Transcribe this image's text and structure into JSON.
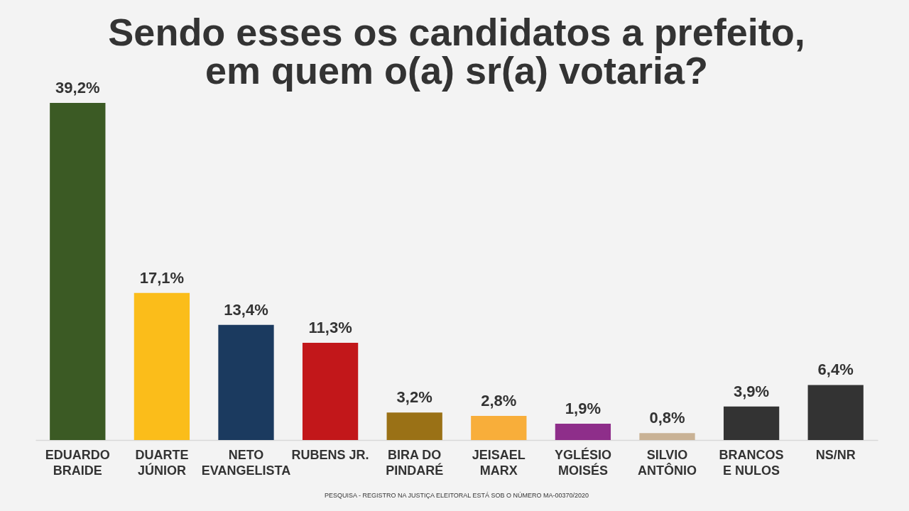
{
  "chart_data": {
    "type": "bar",
    "title": "Sendo esses os candidatos a prefeito,\nem quem o(a) sr(a) votaria?",
    "categories": [
      "EDUARDO\nBRAIDE",
      "DUARTE\nJÚNIOR",
      "NETO\nEVANGELISTA",
      "RUBENS JR.",
      "BIRA DO\nPINDARÉ",
      "JEISAEL\nMARX",
      "YGLÉSIO\nMOISÉS",
      "SILVIO\nANTÔNIO",
      "BRANCOS\nE NULOS",
      "NS/NR"
    ],
    "values": [
      39.2,
      17.1,
      13.4,
      11.3,
      3.2,
      2.8,
      1.9,
      0.8,
      3.9,
      6.4
    ],
    "value_labels": [
      "39,2%",
      "17,1%",
      "13,4%",
      "11,3%",
      "3,2%",
      "2,8%",
      "1,9%",
      "0,8%",
      "3,9%",
      "6,4%"
    ],
    "colors": [
      "#3b5a24",
      "#fbbd1a",
      "#1b3a5f",
      "#c2171a",
      "#9a7116",
      "#f8ae3a",
      "#8e2e8a",
      "#c9b295",
      "#333333",
      "#333333"
    ],
    "annotations": [
      "PESQUISA - REGISTRO NA JUSTIÇA ELEITORAL ESTÁ SOB O NÚMERO MA-00370/2020"
    ]
  }
}
